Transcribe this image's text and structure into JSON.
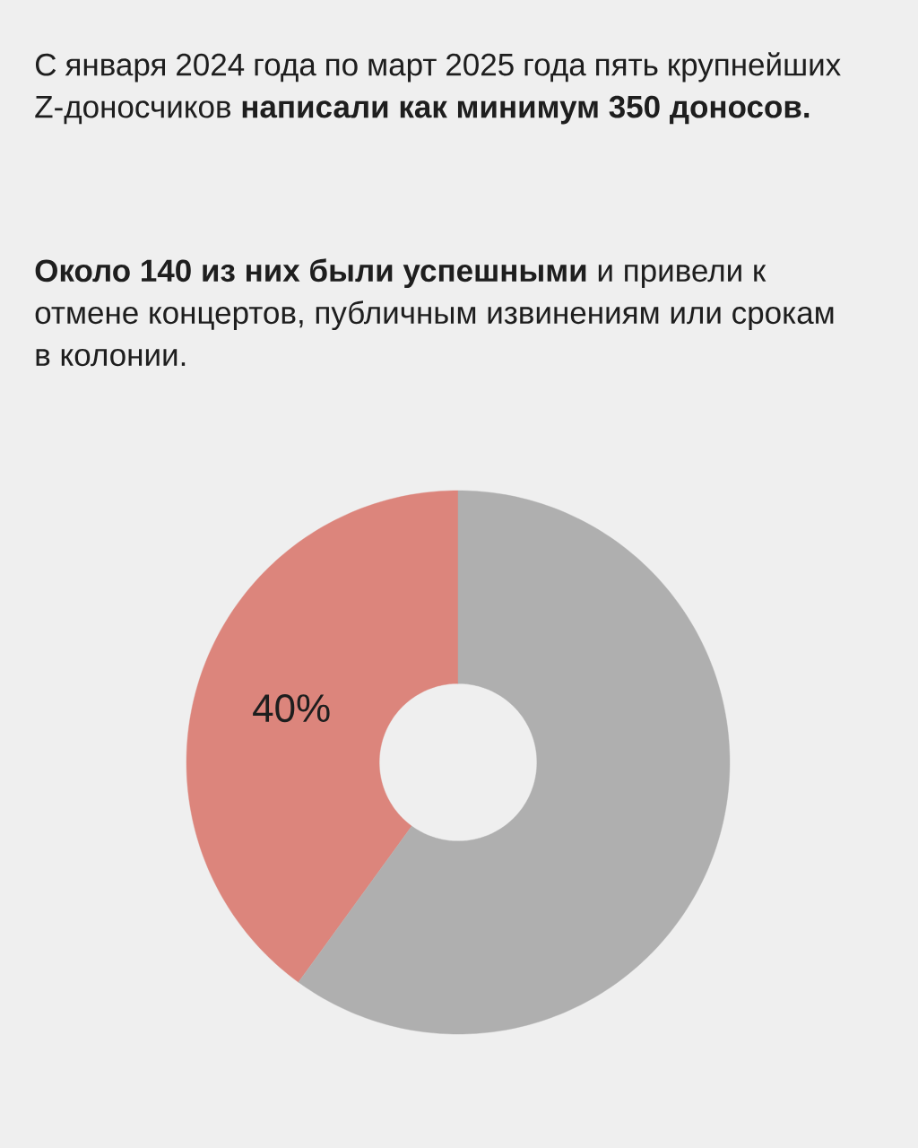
{
  "chart_data": {
    "type": "donut",
    "title": "С января 2024 года по март 2025 года пять крупнейших Z-доносчиков **написали как минимум 350 доносов.**",
    "subtitle": "**Около 140 из них были успешными** и привели к отмене концертов, публичным извинениям или срокам в колонии.",
    "categories": [
      null,
      null
    ],
    "values": [
      40,
      60
    ],
    "colors": [
      "#dc857c",
      "#afafaf"
    ],
    "value_labels": [
      "40%",
      null
    ]
  }
}
